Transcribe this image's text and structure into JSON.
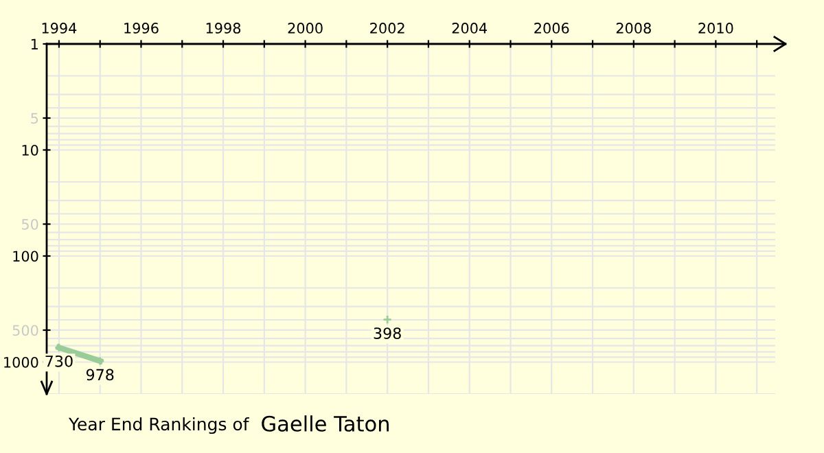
{
  "chart_data": {
    "type": "line",
    "title": "Year End Rankings of",
    "subtitle": "Gaelle Taton",
    "x": [
      1994,
      1995,
      1996,
      1997,
      1998,
      1999,
      2000,
      2001,
      2002
    ],
    "series": [
      {
        "color": "#99cc99",
        "values": [
          730,
          978,
          null,
          null,
          null,
          null,
          null,
          null,
          398
        ]
      }
    ],
    "data_labels": true,
    "marker": "cross",
    "line_style": "solid",
    "log": "y",
    "grid": true,
    "xlim": [
      1993.7,
      2011.7
    ],
    "xticks": [
      1994,
      {
        "value": 1995,
        "label": null
      },
      1996,
      {
        "value": 1997,
        "label": null
      },
      1998,
      {
        "value": 1999,
        "label": null
      },
      2000,
      {
        "value": 2001,
        "label": null
      },
      2002,
      {
        "value": 2003,
        "label": null
      },
      2004,
      {
        "value": 2005,
        "label": null
      },
      2006,
      {
        "value": 2007,
        "label": null
      },
      2008,
      {
        "value": 2009,
        "label": null
      },
      2010,
      {
        "value": 2011,
        "label": null
      }
    ],
    "ylim": [
      2000,
      1
    ],
    "yticks": [
      1,
      5,
      10,
      50,
      100,
      500,
      1000
    ]
  }
}
